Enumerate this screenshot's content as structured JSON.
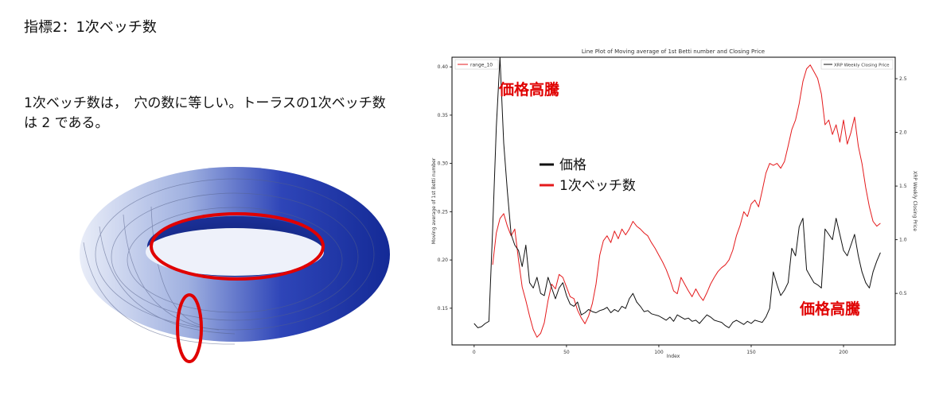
{
  "slide": {
    "title": "指標2：1次ベッチ数",
    "description": "1次ベッチ数は，　穴の数に等しい。トーラスの1次ベッチ数は 2 である。"
  },
  "colors": {
    "betti": "#e41a1c",
    "price": "#111111",
    "torus": "#1f3aa8",
    "loop": "#e00000"
  },
  "chart_data": {
    "type": "line",
    "title": "Line Plot of Moving average of 1st Betti number and Closing Price",
    "xlabel": "Index",
    "ylabel_left": "Moving average of 1st Betti number",
    "ylabel_right": "XRP Weekly Closing Price",
    "xlim": [
      -12,
      228
    ],
    "ylim_left": [
      0.112,
      0.41
    ],
    "ylim_right": [
      0.02,
      2.7
    ],
    "x_ticks": [
      0,
      50,
      100,
      150,
      200
    ],
    "y_ticks_left": [
      0.15,
      0.2,
      0.25,
      0.3,
      0.35,
      0.4
    ],
    "y_ticks_right": [
      0.5,
      1.0,
      1.5,
      2.0,
      2.5
    ],
    "legend_left": "range_10",
    "legend_right": "XRP Weekly Closing Price",
    "series": [
      {
        "name": "range_10",
        "axis": "left",
        "x": [
          10,
          12,
          14,
          16,
          18,
          20,
          22,
          24,
          26,
          28,
          30,
          32,
          34,
          36,
          38,
          40,
          42,
          44,
          46,
          48,
          50,
          52,
          54,
          56,
          58,
          60,
          62,
          64,
          66,
          68,
          70,
          72,
          74,
          76,
          78,
          80,
          82,
          84,
          86,
          88,
          90,
          92,
          94,
          96,
          98,
          100,
          102,
          104,
          106,
          108,
          110,
          112,
          114,
          116,
          118,
          120,
          122,
          124,
          126,
          128,
          130,
          132,
          134,
          136,
          138,
          140,
          142,
          144,
          146,
          148,
          150,
          152,
          154,
          156,
          158,
          160,
          162,
          164,
          166,
          168,
          170,
          172,
          174,
          176,
          178,
          180,
          182,
          184,
          186,
          188,
          190,
          192,
          194,
          196,
          198,
          200,
          202,
          204,
          206,
          208,
          210,
          212,
          214,
          216,
          218,
          220
        ],
        "values": [
          0.195,
          0.228,
          0.243,
          0.248,
          0.235,
          0.225,
          0.232,
          0.2,
          0.172,
          0.158,
          0.142,
          0.128,
          0.12,
          0.124,
          0.135,
          0.158,
          0.175,
          0.17,
          0.185,
          0.182,
          0.172,
          0.162,
          0.16,
          0.148,
          0.14,
          0.134,
          0.142,
          0.155,
          0.175,
          0.205,
          0.22,
          0.225,
          0.218,
          0.23,
          0.222,
          0.232,
          0.226,
          0.232,
          0.24,
          0.235,
          0.232,
          0.228,
          0.225,
          0.218,
          0.212,
          0.205,
          0.198,
          0.19,
          0.18,
          0.168,
          0.165,
          0.182,
          0.175,
          0.168,
          0.162,
          0.17,
          0.163,
          0.158,
          0.166,
          0.175,
          0.182,
          0.188,
          0.192,
          0.195,
          0.2,
          0.21,
          0.225,
          0.236,
          0.25,
          0.245,
          0.258,
          0.262,
          0.255,
          0.272,
          0.29,
          0.3,
          0.298,
          0.3,
          0.295,
          0.302,
          0.318,
          0.335,
          0.345,
          0.362,
          0.385,
          0.398,
          0.402,
          0.395,
          0.388,
          0.372,
          0.34,
          0.345,
          0.33,
          0.34,
          0.322,
          0.345,
          0.32,
          0.332,
          0.348,
          0.318,
          0.3,
          0.275,
          0.255,
          0.24,
          0.235,
          0.238
        ]
      },
      {
        "name": "XRP Weekly Closing Price",
        "axis": "right",
        "x": [
          0,
          2,
          4,
          6,
          8,
          10,
          12,
          14,
          16,
          18,
          20,
          22,
          24,
          26,
          28,
          30,
          32,
          34,
          36,
          38,
          40,
          42,
          44,
          46,
          48,
          50,
          52,
          54,
          56,
          58,
          60,
          62,
          64,
          66,
          68,
          70,
          72,
          74,
          76,
          78,
          80,
          82,
          84,
          86,
          88,
          90,
          92,
          94,
          96,
          98,
          100,
          102,
          104,
          106,
          108,
          110,
          112,
          114,
          116,
          118,
          120,
          122,
          124,
          126,
          128,
          130,
          132,
          134,
          136,
          138,
          140,
          142,
          144,
          146,
          148,
          150,
          152,
          154,
          156,
          158,
          160,
          162,
          164,
          166,
          168,
          170,
          172,
          174,
          176,
          178,
          180,
          182,
          184,
          186,
          188,
          190,
          192,
          194,
          196,
          198,
          200,
          202,
          204,
          206,
          208,
          210,
          212,
          214,
          216,
          218,
          220
        ],
        "values": [
          0.22,
          0.18,
          0.19,
          0.22,
          0.24,
          1.1,
          2.05,
          2.7,
          1.9,
          1.45,
          1.05,
          0.95,
          0.9,
          0.75,
          0.95,
          0.6,
          0.55,
          0.65,
          0.5,
          0.48,
          0.65,
          0.55,
          0.45,
          0.55,
          0.6,
          0.48,
          0.4,
          0.38,
          0.42,
          0.3,
          0.32,
          0.35,
          0.33,
          0.32,
          0.34,
          0.35,
          0.37,
          0.32,
          0.35,
          0.33,
          0.38,
          0.36,
          0.45,
          0.5,
          0.42,
          0.38,
          0.33,
          0.34,
          0.31,
          0.3,
          0.29,
          0.27,
          0.25,
          0.28,
          0.24,
          0.3,
          0.28,
          0.26,
          0.27,
          0.24,
          0.25,
          0.22,
          0.26,
          0.3,
          0.28,
          0.25,
          0.24,
          0.23,
          0.2,
          0.18,
          0.23,
          0.25,
          0.23,
          0.21,
          0.24,
          0.22,
          0.25,
          0.24,
          0.23,
          0.28,
          0.36,
          0.7,
          0.58,
          0.48,
          0.53,
          0.6,
          0.92,
          0.85,
          1.12,
          1.2,
          0.72,
          0.66,
          0.6,
          0.58,
          0.55,
          1.1,
          1.05,
          1.0,
          1.2,
          1.05,
          0.9,
          0.85,
          0.95,
          1.05,
          0.85,
          0.7,
          0.6,
          0.55,
          0.7,
          0.8,
          0.88
        ]
      }
    ],
    "annotations": [
      {
        "text": "価格高騰",
        "color": "#e00000"
      },
      {
        "text": "価格高騰",
        "color": "#e00000"
      }
    ],
    "overlay_legend": [
      {
        "label": "価格",
        "color": "#111111"
      },
      {
        "label": "1次ベッチ数",
        "color": "#e41a1c"
      }
    ]
  }
}
